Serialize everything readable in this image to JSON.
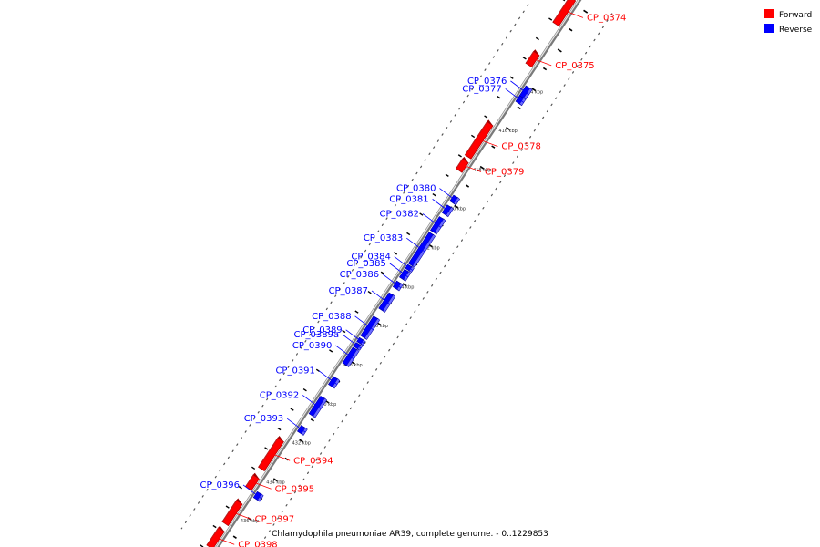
{
  "legend": {
    "forward": {
      "label": "Forward",
      "color": "#ff0000"
    },
    "reverse": {
      "label": "Reverse",
      "color": "#0000ff"
    }
  },
  "caption": "Chlamydophila pneumoniae AR39, complete genome. - 0..1229853",
  "ticks": [
    "414 kbp",
    "416 kbp",
    "418 kbp",
    "420 kbp",
    "422 kbp",
    "424 kbp",
    "426 kbp",
    "428 kbp",
    "430 kbp",
    "432 kbp",
    "434 kbp",
    "436 kbp"
  ],
  "genes": [
    {
      "name": "CP_0374",
      "strand": "forward",
      "start": 409.9,
      "end": 411.2
    },
    {
      "name": "CP_0375",
      "strand": "forward",
      "start": 412.7,
      "end": 413.3
    },
    {
      "name": "CP_0376",
      "strand": "reverse",
      "start": 414.1,
      "end": 414.6
    },
    {
      "name": "CP_0377",
      "strand": "reverse",
      "start": 414.6,
      "end": 414.9
    },
    {
      "name": "CP_0378",
      "strand": "forward",
      "start": 416.3,
      "end": 418.0
    },
    {
      "name": "CP_0379",
      "strand": "forward",
      "start": 418.2,
      "end": 418.7
    },
    {
      "name": "CP_0380",
      "strand": "reverse",
      "start": 419.7,
      "end": 420.0
    },
    {
      "name": "CP_0381",
      "strand": "reverse",
      "start": 420.2,
      "end": 420.6
    },
    {
      "name": "CP_0382",
      "strand": "reverse",
      "start": 420.8,
      "end": 421.5
    },
    {
      "name": "CP_0383",
      "strand": "reverse",
      "start": 421.6,
      "end": 423.2
    },
    {
      "name": "CP_0384",
      "strand": "reverse",
      "start": 423.25,
      "end": 423.45
    },
    {
      "name": "CP_0385",
      "strand": "reverse",
      "start": 423.5,
      "end": 423.9
    },
    {
      "name": "CP_0386",
      "strand": "reverse",
      "start": 424.1,
      "end": 424.4
    },
    {
      "name": "CP_0387",
      "strand": "reverse",
      "start": 424.7,
      "end": 425.5
    },
    {
      "name": "CP_0388",
      "strand": "reverse",
      "start": 425.9,
      "end": 426.9
    },
    {
      "name": "CP_0389",
      "strand": "reverse",
      "start": 427.0,
      "end": 427.2
    },
    {
      "name": "CP_0389a",
      "strand": "reverse",
      "start": 427.25,
      "end": 427.45
    },
    {
      "name": "CP_0390",
      "strand": "reverse",
      "start": 427.5,
      "end": 428.3
    },
    {
      "name": "CP_0391",
      "strand": "reverse",
      "start": 429.0,
      "end": 429.4
    },
    {
      "name": "CP_0392",
      "strand": "reverse",
      "start": 430.0,
      "end": 430.9
    },
    {
      "name": "CP_0393",
      "strand": "reverse",
      "start": 431.5,
      "end": 431.8
    },
    {
      "name": "CP_0394",
      "strand": "forward",
      "start": 432.5,
      "end": 434.0
    },
    {
      "name": "CP_0395",
      "strand": "forward",
      "start": 434.4,
      "end": 435.0
    },
    {
      "name": "CP_0396",
      "strand": "reverse",
      "start": 434.9,
      "end": 435.2
    },
    {
      "name": "CP_0397",
      "strand": "forward",
      "start": 435.7,
      "end": 436.8
    },
    {
      "name": "CP_0398",
      "strand": "forward",
      "start": 437.1,
      "end": 438.0
    }
  ]
}
